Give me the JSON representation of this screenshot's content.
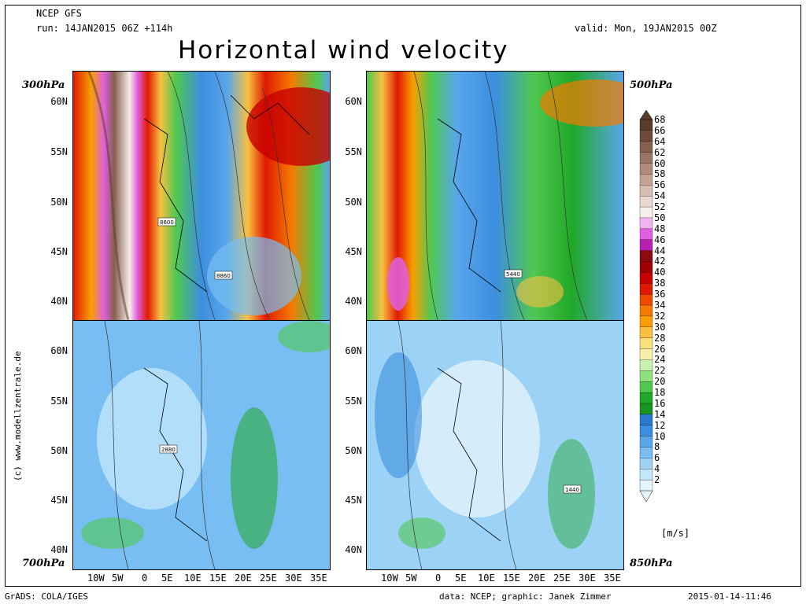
{
  "header": {
    "model": "NCEP GFS",
    "run": "run: 14JAN2015 06Z +114h",
    "valid": "valid: Mon, 19JAN2015 00Z",
    "title": "Horizontal wind velocity"
  },
  "panels": [
    {
      "level": "300hPa",
      "contour_label_1": "8600",
      "contour_label_2": "8860"
    },
    {
      "level": "500hPa",
      "contour_label_1": "5440"
    },
    {
      "level": "700hPa",
      "contour_label_1": "2880"
    },
    {
      "level": "850hPa",
      "contour_label_1": "1440"
    }
  ],
  "latitude_labels": [
    "60N",
    "55N",
    "50N",
    "45N",
    "40N"
  ],
  "longitude_labels": [
    "10W",
    "5W",
    "0",
    "5E",
    "10E",
    "15E",
    "20E",
    "25E",
    "30E",
    "35E"
  ],
  "colorbar": {
    "units": "[m/s]",
    "levels": [
      "68",
      "66",
      "64",
      "62",
      "60",
      "58",
      "56",
      "54",
      "52",
      "50",
      "48",
      "46",
      "44",
      "42",
      "40",
      "38",
      "36",
      "34",
      "32",
      "30",
      "28",
      "26",
      "24",
      "22",
      "20",
      "18",
      "16",
      "14",
      "12",
      "10",
      "8",
      "6",
      "4",
      "2"
    ],
    "colors": [
      "#5a3a2a",
      "#6e4a38",
      "#85604c",
      "#9b7563",
      "#b08b7a",
      "#c4a395",
      "#d6bdb2",
      "#e8d8d0",
      "#f6eeea",
      "#f2b4f0",
      "#e060e0",
      "#b820b0",
      "#8c0a10",
      "#a00000",
      "#c80000",
      "#e01a00",
      "#f04a00",
      "#f47a00",
      "#f8a000",
      "#f8c040",
      "#fae07a",
      "#f6f0a8",
      "#c8f0b0",
      "#90e080",
      "#50c850",
      "#20a828",
      "#169420",
      "#2a78d0",
      "#3c8ee0",
      "#58a6ea",
      "#78bef2",
      "#9cd2f6",
      "#c2e6fa",
      "#e4f4fc"
    ]
  },
  "footer": {
    "grads": "GrADS: COLA/IGES",
    "credits": "data: NCEP; graphic: Janek Zimmer",
    "timestamp": "2015-01-14-11:46"
  },
  "side_credit": "(c) www.modellzentrale.de"
}
